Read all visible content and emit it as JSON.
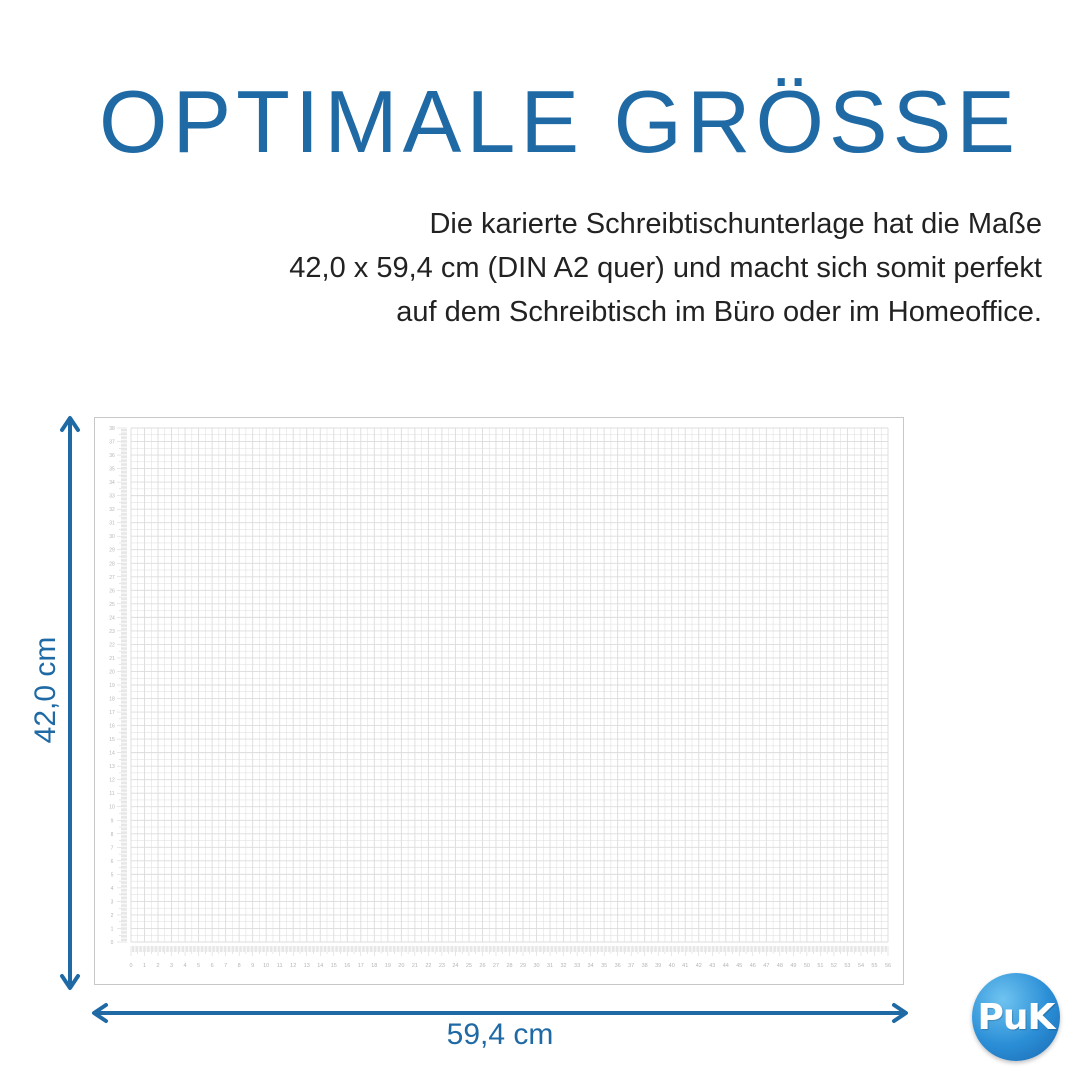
{
  "headline": "OPTIMALE GRÖSSE",
  "description": [
    "Die karierte Schreibtischunterlage hat die Maße",
    "42,0 x 59,4 cm (DIN A2 quer) und macht sich somit perfekt",
    "auf dem Schreibtisch im Büro oder im Homeoffice."
  ],
  "dimensions": {
    "width_label": "59,4 cm",
    "height_label": "42,0 cm"
  },
  "grid": {
    "x_ticks": [
      0,
      1,
      2,
      3,
      4,
      5,
      6,
      7,
      8,
      9,
      10,
      11,
      12,
      13,
      14,
      15,
      16,
      17,
      18,
      19,
      20,
      21,
      22,
      23,
      24,
      25,
      26,
      27,
      28,
      29,
      30,
      31,
      32,
      33,
      34,
      35,
      36,
      37,
      38,
      39,
      40,
      41,
      42,
      43,
      44,
      45,
      46,
      47,
      48,
      49,
      50,
      51,
      52,
      53,
      54,
      55,
      56
    ],
    "y_ticks": [
      38,
      37,
      36,
      35,
      34,
      33,
      32,
      31,
      30,
      29,
      28,
      27,
      26,
      25,
      24,
      23,
      22,
      21,
      20,
      19,
      18,
      17,
      16,
      15,
      14,
      13,
      12,
      11,
      10,
      9,
      8,
      7,
      6,
      5,
      4,
      3,
      2,
      1,
      0
    ]
  },
  "logo": {
    "text": "PuK"
  },
  "colors": {
    "accent": "#1f6aa5",
    "grid_line": "#dcdcdc",
    "grid_label": "#b5b5b5"
  }
}
